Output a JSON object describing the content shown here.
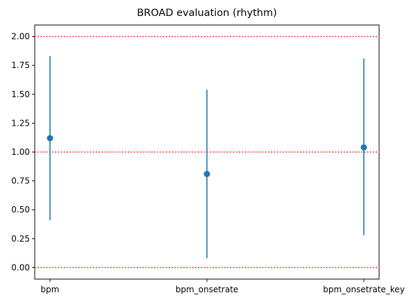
{
  "chart_data": {
    "type": "scatter",
    "title": "BROAD evaluation (rhythm)",
    "xlabel": "",
    "ylabel": "",
    "categories": [
      "bpm",
      "bpm_onsetrate",
      "bpm_onsetrate_key"
    ],
    "series": [
      {
        "values": [
          1.12,
          0.81,
          1.04
        ],
        "error_low": [
          0.41,
          0.08,
          0.28
        ],
        "error_high": [
          1.83,
          1.54,
          1.81
        ],
        "color": "#1f77b4"
      }
    ],
    "reference_lines": [
      {
        "y": 0.0,
        "color": "#ff0000",
        "style": "dotted"
      },
      {
        "y": 1.0,
        "color": "#ff0000",
        "style": "dotted"
      },
      {
        "y": 2.0,
        "color": "#ff0000",
        "style": "dotted"
      }
    ],
    "ylim": [
      -0.1,
      2.1
    ],
    "yticks": [
      "0.00",
      "0.25",
      "0.50",
      "0.75",
      "1.00",
      "1.25",
      "1.50",
      "1.75",
      "2.00"
    ],
    "grid": false,
    "legend": "none"
  }
}
